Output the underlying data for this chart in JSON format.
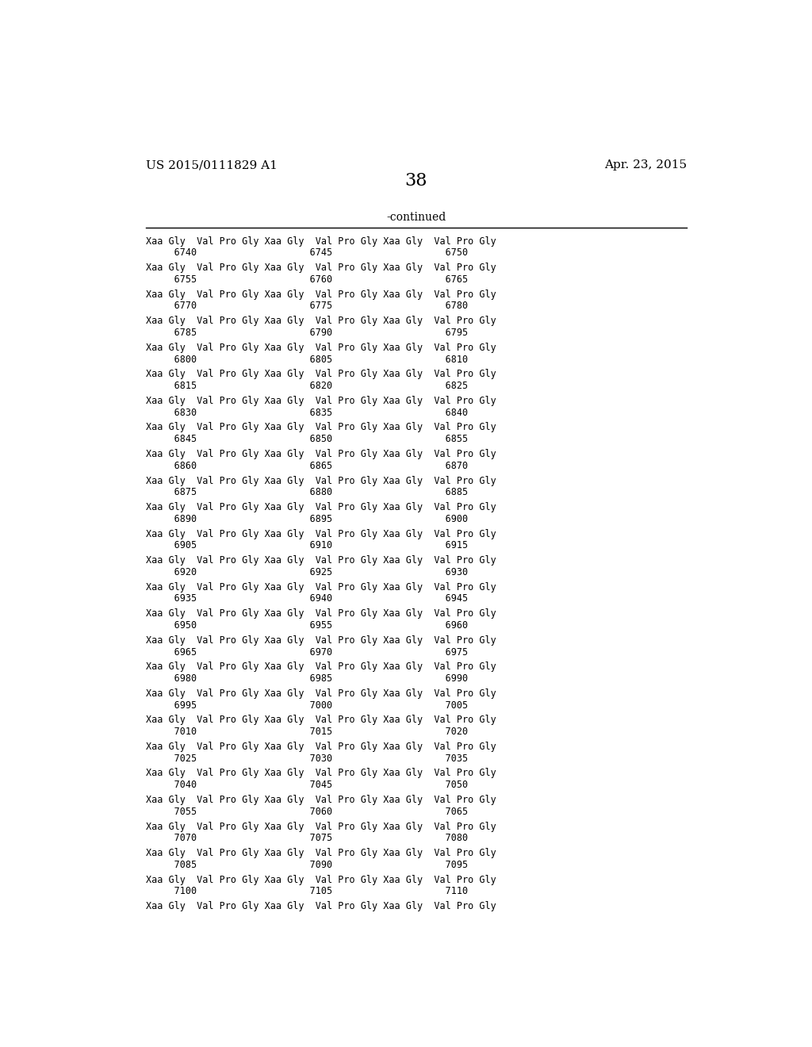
{
  "background_color": "#ffffff",
  "header_left": "US 2015/0111829 A1",
  "header_right": "Apr. 23, 2015",
  "page_number": "38",
  "continued_label": "-continued",
  "header_fontsize": 11,
  "page_num_fontsize": 16,
  "continued_fontsize": 10,
  "body_fontsize": 8.5,
  "rows": [
    {
      "line1": "Xaa Gly  Val Pro Gly Xaa Gly  Val Pro Gly Xaa Gly  Val Pro Gly",
      "line2": "     6740                    6745                    6750"
    },
    {
      "line1": "Xaa Gly  Val Pro Gly Xaa Gly  Val Pro Gly Xaa Gly  Val Pro Gly",
      "line2": "     6755                    6760                    6765"
    },
    {
      "line1": "Xaa Gly  Val Pro Gly Xaa Gly  Val Pro Gly Xaa Gly  Val Pro Gly",
      "line2": "     6770                    6775                    6780"
    },
    {
      "line1": "Xaa Gly  Val Pro Gly Xaa Gly  Val Pro Gly Xaa Gly  Val Pro Gly",
      "line2": "     6785                    6790                    6795"
    },
    {
      "line1": "Xaa Gly  Val Pro Gly Xaa Gly  Val Pro Gly Xaa Gly  Val Pro Gly",
      "line2": "     6800                    6805                    6810"
    },
    {
      "line1": "Xaa Gly  Val Pro Gly Xaa Gly  Val Pro Gly Xaa Gly  Val Pro Gly",
      "line2": "     6815                    6820                    6825"
    },
    {
      "line1": "Xaa Gly  Val Pro Gly Xaa Gly  Val Pro Gly Xaa Gly  Val Pro Gly",
      "line2": "     6830                    6835                    6840"
    },
    {
      "line1": "Xaa Gly  Val Pro Gly Xaa Gly  Val Pro Gly Xaa Gly  Val Pro Gly",
      "line2": "     6845                    6850                    6855"
    },
    {
      "line1": "Xaa Gly  Val Pro Gly Xaa Gly  Val Pro Gly Xaa Gly  Val Pro Gly",
      "line2": "     6860                    6865                    6870"
    },
    {
      "line1": "Xaa Gly  Val Pro Gly Xaa Gly  Val Pro Gly Xaa Gly  Val Pro Gly",
      "line2": "     6875                    6880                    6885"
    },
    {
      "line1": "Xaa Gly  Val Pro Gly Xaa Gly  Val Pro Gly Xaa Gly  Val Pro Gly",
      "line2": "     6890                    6895                    6900"
    },
    {
      "line1": "Xaa Gly  Val Pro Gly Xaa Gly  Val Pro Gly Xaa Gly  Val Pro Gly",
      "line2": "     6905                    6910                    6915"
    },
    {
      "line1": "Xaa Gly  Val Pro Gly Xaa Gly  Val Pro Gly Xaa Gly  Val Pro Gly",
      "line2": "     6920                    6925                    6930"
    },
    {
      "line1": "Xaa Gly  Val Pro Gly Xaa Gly  Val Pro Gly Xaa Gly  Val Pro Gly",
      "line2": "     6935                    6940                    6945"
    },
    {
      "line1": "Xaa Gly  Val Pro Gly Xaa Gly  Val Pro Gly Xaa Gly  Val Pro Gly",
      "line2": "     6950                    6955                    6960"
    },
    {
      "line1": "Xaa Gly  Val Pro Gly Xaa Gly  Val Pro Gly Xaa Gly  Val Pro Gly",
      "line2": "     6965                    6970                    6975"
    },
    {
      "line1": "Xaa Gly  Val Pro Gly Xaa Gly  Val Pro Gly Xaa Gly  Val Pro Gly",
      "line2": "     6980                    6985                    6990"
    },
    {
      "line1": "Xaa Gly  Val Pro Gly Xaa Gly  Val Pro Gly Xaa Gly  Val Pro Gly",
      "line2": "     6995                    7000                    7005"
    },
    {
      "line1": "Xaa Gly  Val Pro Gly Xaa Gly  Val Pro Gly Xaa Gly  Val Pro Gly",
      "line2": "     7010                    7015                    7020"
    },
    {
      "line1": "Xaa Gly  Val Pro Gly Xaa Gly  Val Pro Gly Xaa Gly  Val Pro Gly",
      "line2": "     7025                    7030                    7035"
    },
    {
      "line1": "Xaa Gly  Val Pro Gly Xaa Gly  Val Pro Gly Xaa Gly  Val Pro Gly",
      "line2": "     7040                    7045                    7050"
    },
    {
      "line1": "Xaa Gly  Val Pro Gly Xaa Gly  Val Pro Gly Xaa Gly  Val Pro Gly",
      "line2": "     7055                    7060                    7065"
    },
    {
      "line1": "Xaa Gly  Val Pro Gly Xaa Gly  Val Pro Gly Xaa Gly  Val Pro Gly",
      "line2": "     7070                    7075                    7080"
    },
    {
      "line1": "Xaa Gly  Val Pro Gly Xaa Gly  Val Pro Gly Xaa Gly  Val Pro Gly",
      "line2": "     7085                    7090                    7095"
    },
    {
      "line1": "Xaa Gly  Val Pro Gly Xaa Gly  Val Pro Gly Xaa Gly  Val Pro Gly",
      "line2": "     7100                    7105                    7110"
    },
    {
      "line1": "Xaa Gly  Val Pro Gly Xaa Gly  Val Pro Gly Xaa Gly  Val Pro Gly",
      "line2": ""
    }
  ]
}
